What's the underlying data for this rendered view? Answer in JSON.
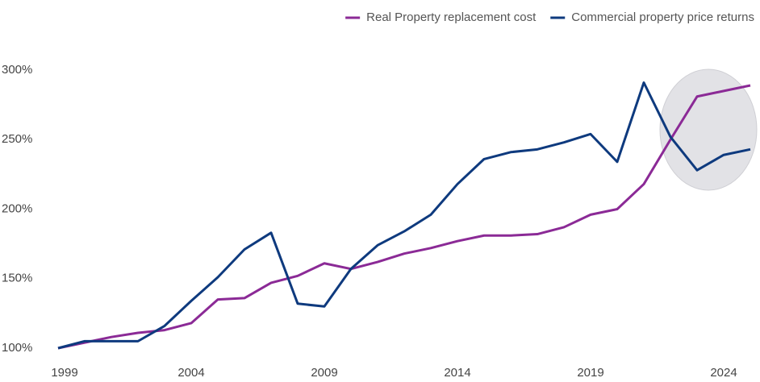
{
  "chart_data": {
    "type": "line",
    "x": [
      1999,
      2000,
      2001,
      2002,
      2003,
      2004,
      2005,
      2006,
      2007,
      2008,
      2009,
      2010,
      2011,
      2012,
      2013,
      2014,
      2015,
      2016,
      2017,
      2018,
      2019,
      2020,
      2021,
      2022,
      2023,
      2024,
      2025
    ],
    "series": [
      {
        "name": "Real Property replacement cost",
        "color": "#8b2a96",
        "values": [
          100,
          104,
          108,
          111,
          113,
          118,
          135,
          136,
          147,
          152,
          161,
          157,
          162,
          168,
          172,
          177,
          181,
          181,
          182,
          187,
          196,
          200,
          218,
          250,
          281,
          285,
          289
        ]
      },
      {
        "name": "Commercial property price returns",
        "color": "#0e3a7e",
        "values": [
          100,
          105,
          105,
          105,
          116,
          134,
          151,
          171,
          183,
          132,
          130,
          157,
          174,
          184,
          196,
          218,
          236,
          241,
          243,
          248,
          254,
          234,
          291,
          252,
          228,
          239,
          243
        ]
      }
    ],
    "xlim": [
      1999,
      2025
    ],
    "xticks": [
      1999,
      2004,
      2009,
      2014,
      2019,
      2024
    ],
    "ylim": [
      100,
      300
    ],
    "yticks": [
      {
        "value": 100,
        "label": "100%"
      },
      {
        "value": 150,
        "label": "150%"
      },
      {
        "value": 200,
        "label": "200%"
      },
      {
        "value": 250,
        "label": "250%"
      },
      {
        "value": 300,
        "label": "300%"
      }
    ],
    "legend": "top-right"
  }
}
